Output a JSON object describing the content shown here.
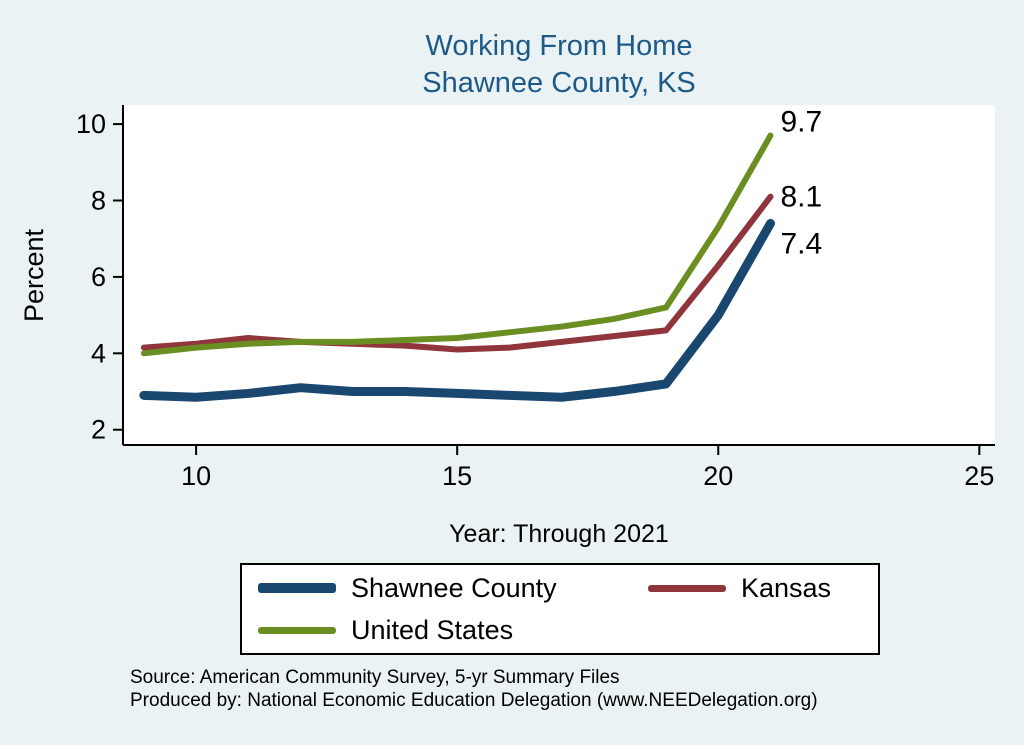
{
  "colors": {
    "background": "#eaf2f3",
    "title": "#1d5a8a",
    "axis": "#000000",
    "plot_background": "#ffffff"
  },
  "chart_data": {
    "type": "line",
    "title": "Working From Home",
    "subtitle": "Shawnee County, KS",
    "xlabel": "Year: Through 2021",
    "ylabel": "Percent",
    "x": [
      9,
      10,
      11,
      12,
      13,
      14,
      15,
      16,
      17,
      18,
      19,
      20,
      21
    ],
    "xlim": [
      8.6,
      25.3
    ],
    "ylim": [
      1.6,
      10.5
    ],
    "xticks": [
      10,
      15,
      20,
      25
    ],
    "yticks": [
      2,
      4,
      6,
      8,
      10
    ],
    "grid": false,
    "legend_position": "bottom",
    "series": [
      {
        "name": "Shawnee County",
        "color": "#1a476f",
        "width": 9,
        "values": [
          2.9,
          2.85,
          2.95,
          3.1,
          3.0,
          3.0,
          2.95,
          2.9,
          2.85,
          3.0,
          3.2,
          5.0,
          7.4
        ],
        "end_label": "7.4",
        "label_dy": 20
      },
      {
        "name": "Kansas",
        "color": "#90353b",
        "width": 6,
        "values": [
          4.15,
          4.25,
          4.4,
          4.3,
          4.25,
          4.2,
          4.1,
          4.15,
          4.3,
          4.45,
          4.6,
          6.3,
          8.1
        ],
        "end_label": "8.1",
        "label_dy": 0
      },
      {
        "name": "United States",
        "color": "#6b8e23",
        "width": 6,
        "values": [
          4.0,
          4.15,
          4.25,
          4.3,
          4.3,
          4.35,
          4.4,
          4.55,
          4.7,
          4.9,
          5.2,
          7.3,
          9.7
        ],
        "end_label": "9.7",
        "label_dy": -14
      }
    ]
  },
  "footer": {
    "source": "Source: American Community Survey, 5-yr Summary Files",
    "produced_by": "Produced by: National Economic Education Delegation (www.NEEDelegation.org)"
  }
}
